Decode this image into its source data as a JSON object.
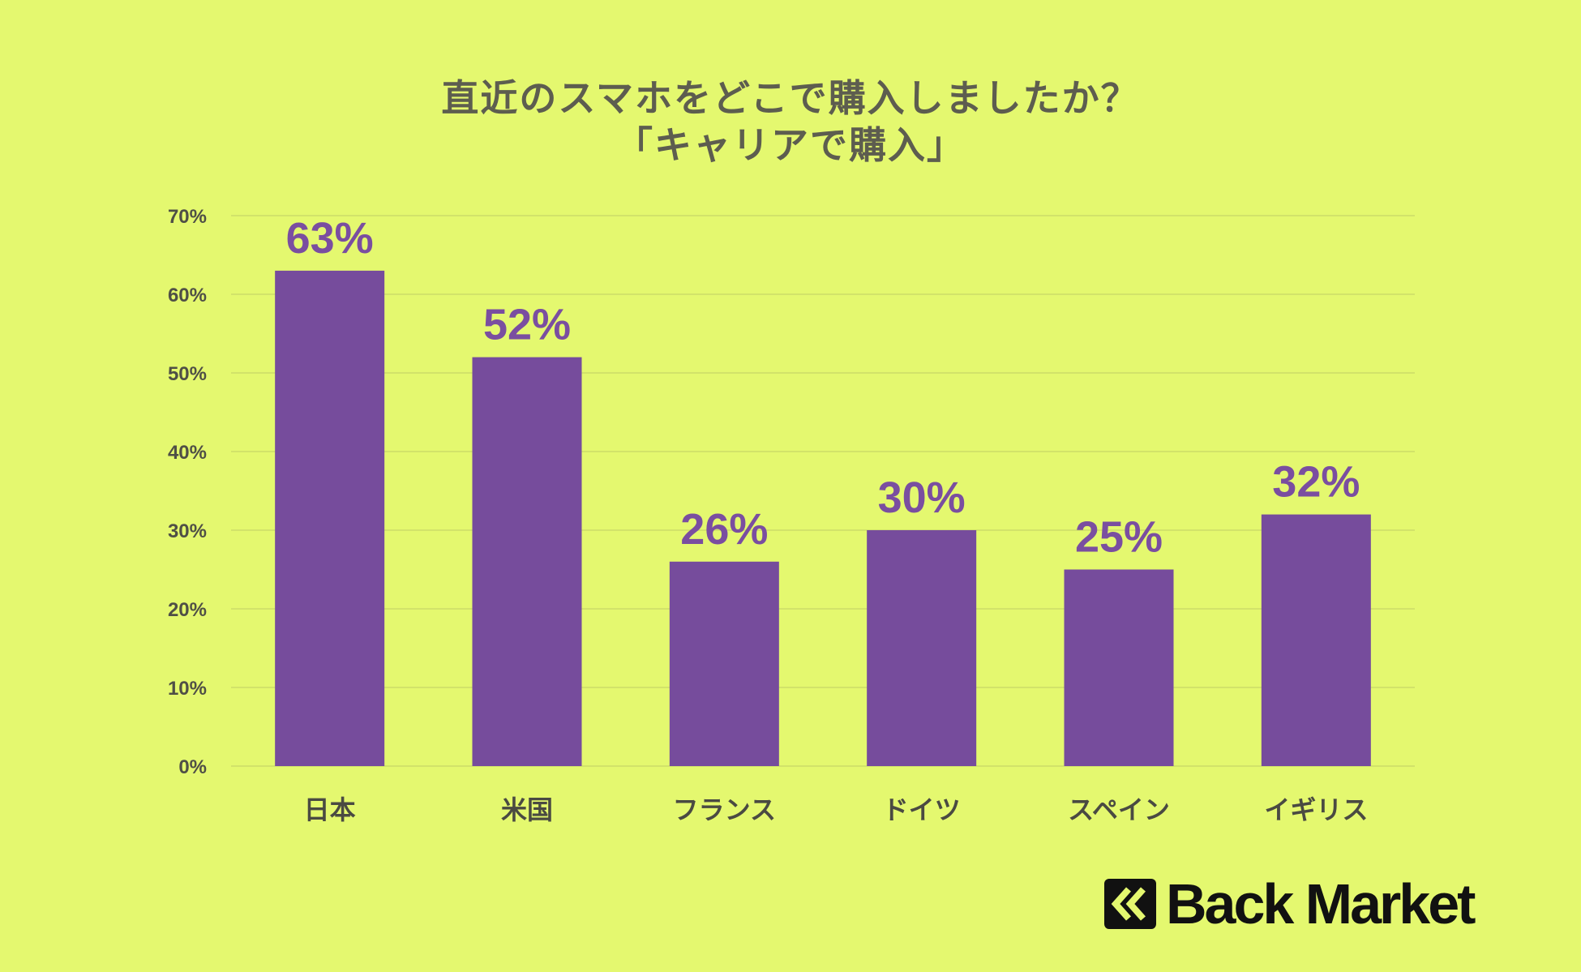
{
  "title": {
    "line1": "直近のスマホをどこで購入しましたか？",
    "line2": "「キャリアで購入」"
  },
  "logo": {
    "text": "Back Market",
    "icon": "back-market-chevrons-icon"
  },
  "colors": {
    "background": "#e4f86f",
    "bar": "#764c9c",
    "label": "#7a4ea0",
    "grid": "#d2e36a"
  },
  "chart_data": {
    "type": "bar",
    "categories": [
      "日本",
      "米国",
      "フランス",
      "ドイツ",
      "スペイン",
      "イギリス"
    ],
    "values": [
      63,
      52,
      26,
      30,
      25,
      32
    ],
    "data_labels": [
      "63%",
      "52%",
      "26%",
      "30%",
      "25%",
      "32%"
    ],
    "yticks": [
      "0%",
      "10%",
      "20%",
      "30%",
      "40%",
      "50%",
      "60%",
      "70%"
    ],
    "ylim": [
      0,
      70
    ],
    "grid": true,
    "legend": false
  }
}
